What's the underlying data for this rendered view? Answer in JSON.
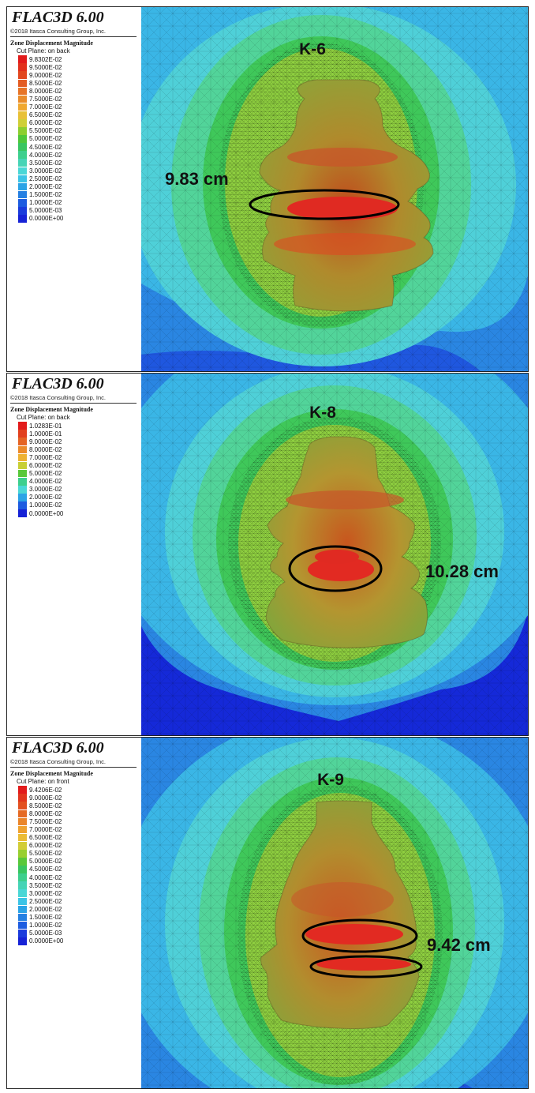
{
  "software": {
    "title": "FLAC3D 6.00",
    "copyright": "©2018 Itasca Consulting Group, Inc."
  },
  "colors": {
    "contours": [
      "#1529d8",
      "#1e55e0",
      "#2a86e2",
      "#3ab6e6",
      "#4fd0d8",
      "#52d49a",
      "#3fc85a",
      "#8fd040"
    ],
    "cavity": [
      "#b6a431",
      "#caa23a",
      "#d98c2e",
      "#d8542a",
      "#e22a22"
    ],
    "ellipse": "#000000"
  },
  "panels": [
    {
      "legend_title": "Zone Displacement Magnitude",
      "cut_plane": "Cut Plane: on back",
      "label": "K-6",
      "annotation": "9.83 cm",
      "legend": [
        {
          "value": "9.8302E-02",
          "color": "#e21b1b"
        },
        {
          "value": "9.5000E-02",
          "color": "#e2301c"
        },
        {
          "value": "9.0000E-02",
          "color": "#e2471f"
        },
        {
          "value": "8.5000E-02",
          "color": "#e35c22"
        },
        {
          "value": "8.0000E-02",
          "color": "#e77426"
        },
        {
          "value": "7.5000E-02",
          "color": "#ea8c2a"
        },
        {
          "value": "7.0000E-02",
          "color": "#f0a830"
        },
        {
          "value": "6.5000E-02",
          "color": "#e8c036"
        },
        {
          "value": "6.0000E-02",
          "color": "#cfcf37"
        },
        {
          "value": "5.5000E-02",
          "color": "#8ccf2f"
        },
        {
          "value": "5.0000E-02",
          "color": "#4ec83a"
        },
        {
          "value": "4.5000E-02",
          "color": "#38c660"
        },
        {
          "value": "4.0000E-02",
          "color": "#3dcf8d"
        },
        {
          "value": "3.5000E-02",
          "color": "#46d4b6"
        },
        {
          "value": "3.0000E-02",
          "color": "#4ad7d6"
        },
        {
          "value": "2.5000E-02",
          "color": "#3cc4e6"
        },
        {
          "value": "2.0000E-02",
          "color": "#2ba3e6"
        },
        {
          "value": "1.5000E-02",
          "color": "#247fe2"
        },
        {
          "value": "1.0000E-02",
          "color": "#1d5ce0"
        },
        {
          "value": "5.0000E-03",
          "color": "#1a3bdc"
        },
        {
          "value": "0.0000E+00",
          "color": "#1622d6"
        }
      ]
    },
    {
      "legend_title": "Zone Displacement Magnitude",
      "cut_plane": "Cut Plane: on back",
      "label": "K-8",
      "annotation": "10.28 cm",
      "legend": [
        {
          "value": "1.0283E-01",
          "color": "#e21b1b"
        },
        {
          "value": "1.0000E-01",
          "color": "#e2401e"
        },
        {
          "value": "9.0000E-02",
          "color": "#e56424"
        },
        {
          "value": "8.0000E-02",
          "color": "#ec8a2a"
        },
        {
          "value": "7.0000E-02",
          "color": "#eeb233"
        },
        {
          "value": "6.0000E-02",
          "color": "#c8cf35"
        },
        {
          "value": "5.0000E-02",
          "color": "#58c83a"
        },
        {
          "value": "4.0000E-02",
          "color": "#3dcf8d"
        },
        {
          "value": "3.0000E-02",
          "color": "#4ad7d6"
        },
        {
          "value": "2.0000E-02",
          "color": "#2ba3e6"
        },
        {
          "value": "1.0000E-02",
          "color": "#1d5ce0"
        },
        {
          "value": "0.0000E+00",
          "color": "#1622d6"
        }
      ]
    },
    {
      "legend_title": "Zone Displacement Magnitude",
      "cut_plane": "Cut Plane: on front",
      "label": "K-9",
      "annotation": "9.42 cm",
      "legend": [
        {
          "value": "9.4206E-02",
          "color": "#e21b1b"
        },
        {
          "value": "9.0000E-02",
          "color": "#e2361d"
        },
        {
          "value": "8.5000E-02",
          "color": "#e35020"
        },
        {
          "value": "8.0000E-02",
          "color": "#e56a24"
        },
        {
          "value": "7.5000E-02",
          "color": "#ea8529"
        },
        {
          "value": "7.0000E-02",
          "color": "#efa22f"
        },
        {
          "value": "6.5000E-02",
          "color": "#ebbc35"
        },
        {
          "value": "6.0000E-02",
          "color": "#d2cd37"
        },
        {
          "value": "5.5000E-02",
          "color": "#98cf30"
        },
        {
          "value": "5.0000E-02",
          "color": "#58c83a"
        },
        {
          "value": "4.5000E-02",
          "color": "#38c660"
        },
        {
          "value": "4.0000E-02",
          "color": "#3dcf8d"
        },
        {
          "value": "3.5000E-02",
          "color": "#46d4b6"
        },
        {
          "value": "3.0000E-02",
          "color": "#4ad7d6"
        },
        {
          "value": "2.5000E-02",
          "color": "#3cc4e6"
        },
        {
          "value": "2.0000E-02",
          "color": "#2ba3e6"
        },
        {
          "value": "1.5000E-02",
          "color": "#247fe2"
        },
        {
          "value": "1.0000E-02",
          "color": "#1d5ce0"
        },
        {
          "value": "5.0000E-03",
          "color": "#1a3bdc"
        },
        {
          "value": "0.0000E+00",
          "color": "#1622d6"
        }
      ]
    }
  ]
}
